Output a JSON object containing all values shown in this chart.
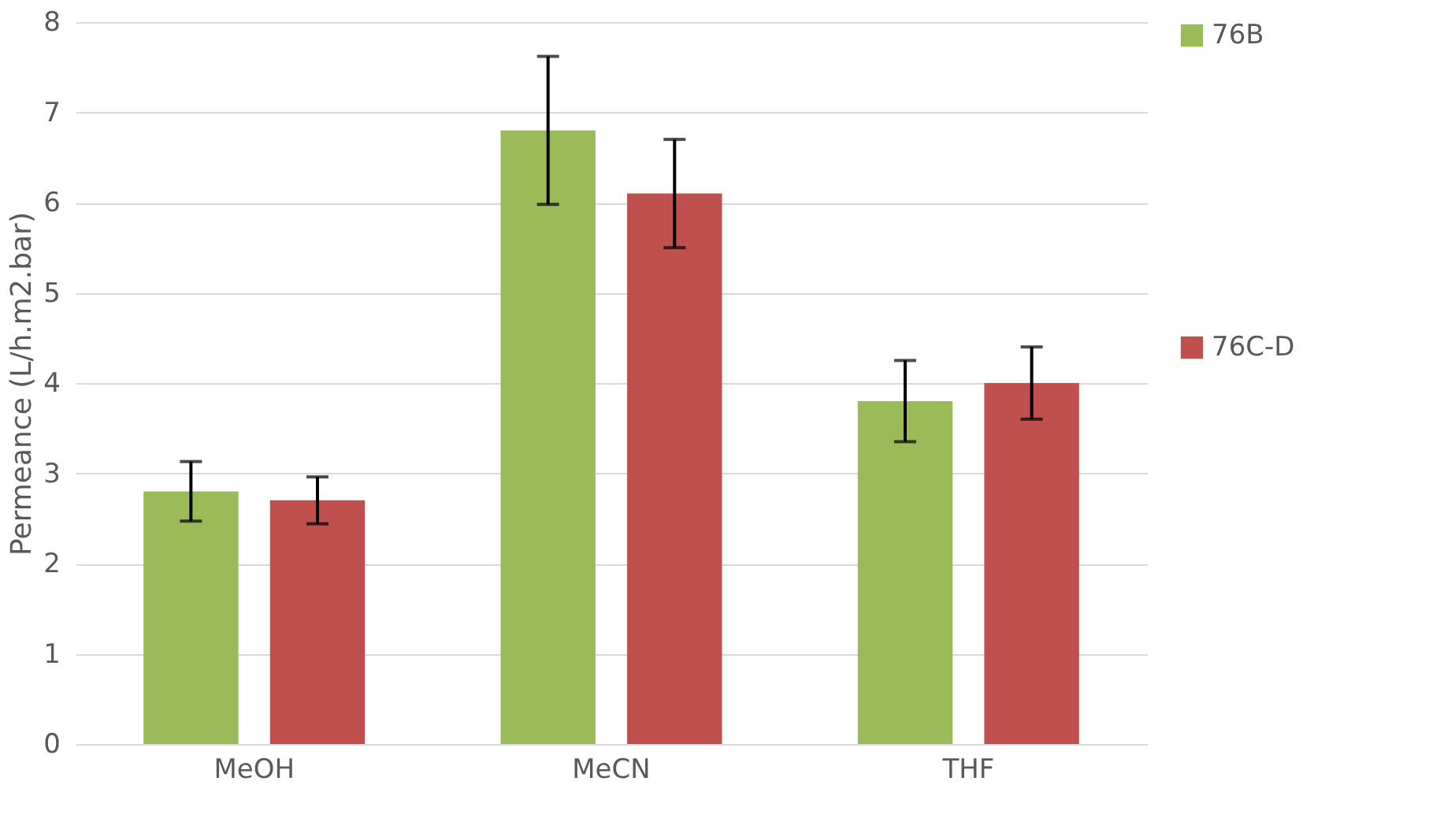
{
  "chart_data": {
    "type": "bar",
    "ylabel": "Permeance (L/h.m2.bar)",
    "categories": [
      "MeOH",
      "MeCN",
      "THF"
    ],
    "series": [
      {
        "name": "76B",
        "color": "#9bbb59",
        "values": [
          2.8,
          6.8,
          3.8
        ],
        "errors": [
          0.33,
          0.82,
          0.45
        ]
      },
      {
        "name": "76C-D",
        "color": "#c0504d",
        "values": [
          2.7,
          6.1,
          4.0
        ],
        "errors": [
          0.26,
          0.6,
          0.4
        ]
      }
    ],
    "ylim": [
      0,
      8
    ],
    "yticks": [
      0,
      1,
      2,
      3,
      4,
      5,
      6,
      7,
      8
    ],
    "grid": "y",
    "legend": "right"
  }
}
